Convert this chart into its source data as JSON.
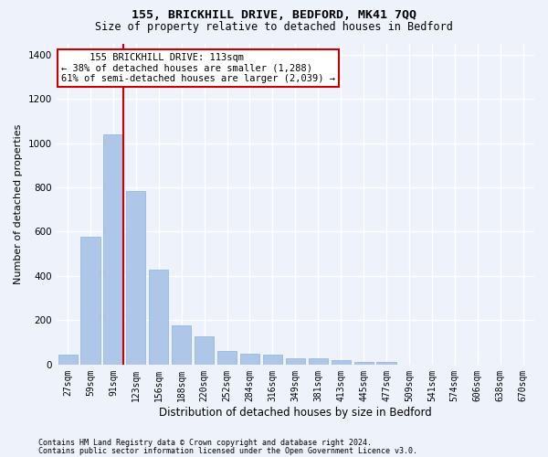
{
  "title1": "155, BRICKHILL DRIVE, BEDFORD, MK41 7QQ",
  "title2": "Size of property relative to detached houses in Bedford",
  "xlabel": "Distribution of detached houses by size in Bedford",
  "ylabel": "Number of detached properties",
  "categories": [
    "27sqm",
    "59sqm",
    "91sqm",
    "123sqm",
    "156sqm",
    "188sqm",
    "220sqm",
    "252sqm",
    "284sqm",
    "316sqm",
    "349sqm",
    "381sqm",
    "413sqm",
    "445sqm",
    "477sqm",
    "509sqm",
    "541sqm",
    "574sqm",
    "606sqm",
    "638sqm",
    "670sqm"
  ],
  "values": [
    45,
    578,
    1040,
    785,
    430,
    178,
    128,
    63,
    47,
    45,
    28,
    27,
    20,
    13,
    10,
    0,
    0,
    0,
    0,
    0,
    0
  ],
  "bar_color": "#aec6e8",
  "bar_edge_color": "#8ab4d8",
  "vline_color": "#cc0000",
  "annotation_line1": "     155 BRICKHILL DRIVE: 113sqm",
  "annotation_line2": "← 38% of detached houses are smaller (1,288)",
  "annotation_line3": "61% of semi-detached houses are larger (2,039) →",
  "annotation_box_color": "#ffffff",
  "annotation_box_edge": "#cc0000",
  "ylim": [
    0,
    1450
  ],
  "yticks": [
    0,
    200,
    400,
    600,
    800,
    1000,
    1200,
    1400
  ],
  "footnote1": "Contains HM Land Registry data © Crown copyright and database right 2024.",
  "footnote2": "Contains public sector information licensed under the Open Government Licence v3.0.",
  "background_color": "#eef2fb",
  "plot_bg_color": "#eef2fb",
  "grid_color": "#ffffff",
  "title1_fontsize": 9.5,
  "title2_fontsize": 8.5,
  "xlabel_fontsize": 8.5,
  "ylabel_fontsize": 8,
  "tick_fontsize": 7,
  "annot_fontsize": 7.5,
  "footnote_fontsize": 6
}
